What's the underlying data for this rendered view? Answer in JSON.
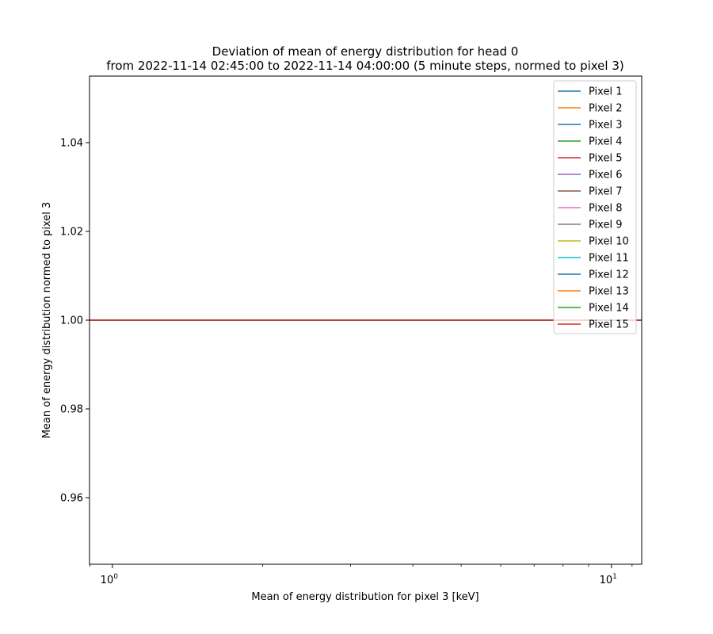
{
  "chart_data": {
    "type": "line",
    "title": "Deviation of mean of energy distribution for head 0",
    "subtitle": "from 2022-11-14 02:45:00 to 2022-11-14 04:00:00 (5 minute steps, normed to pixel 3)",
    "xlabel": "Mean of energy distribution for pixel 3 [keV]",
    "ylabel": "Mean of energy distribution normed to pixel 3",
    "x_scale": "log",
    "xlim": [
      0.9,
      11.5
    ],
    "ylim": [
      0.945,
      1.055
    ],
    "x_ticks": [
      {
        "value": 1,
        "label": "10",
        "exp": "0"
      },
      {
        "value": 10,
        "label": "10",
        "exp": "1"
      }
    ],
    "y_ticks": [
      {
        "value": 0.96,
        "label": "0.96"
      },
      {
        "value": 0.98,
        "label": "0.98"
      },
      {
        "value": 1.0,
        "label": "1.00"
      },
      {
        "value": 1.02,
        "label": "1.02"
      },
      {
        "value": 1.04,
        "label": "1.04"
      }
    ],
    "grid": false,
    "legend_position": "top-right",
    "series": [
      {
        "name": "Pixel 1",
        "color": "#1f77b4",
        "x": [
          0.9,
          11.5
        ],
        "y": [
          1.0,
          1.0
        ]
      },
      {
        "name": "Pixel 2",
        "color": "#ff7f0e",
        "x": [
          0.9,
          11.5
        ],
        "y": [
          1.0,
          1.0
        ]
      },
      {
        "name": "Pixel 3",
        "color": "#1f77b4",
        "x": [
          0.9,
          11.5
        ],
        "y": [
          1.0,
          1.0
        ]
      },
      {
        "name": "Pixel 4",
        "color": "#2ca02c",
        "x": [
          0.9,
          11.5
        ],
        "y": [
          1.0,
          1.0
        ]
      },
      {
        "name": "Pixel 5",
        "color": "#d62728",
        "x": [
          0.9,
          11.5
        ],
        "y": [
          1.0,
          1.0
        ]
      },
      {
        "name": "Pixel 6",
        "color": "#9467bd",
        "x": [
          0.9,
          11.5
        ],
        "y": [
          1.0,
          1.0
        ]
      },
      {
        "name": "Pixel 7",
        "color": "#8c564b",
        "x": [
          0.9,
          11.5
        ],
        "y": [
          1.0,
          1.0
        ]
      },
      {
        "name": "Pixel 8",
        "color": "#e377c2",
        "x": [
          0.9,
          11.5
        ],
        "y": [
          1.0,
          1.0
        ]
      },
      {
        "name": "Pixel 9",
        "color": "#7f7f7f",
        "x": [
          0.9,
          11.5
        ],
        "y": [
          1.0,
          1.0
        ]
      },
      {
        "name": "Pixel 10",
        "color": "#bcbd22",
        "x": [
          0.9,
          11.5
        ],
        "y": [
          1.0,
          1.0
        ]
      },
      {
        "name": "Pixel 11",
        "color": "#17becf",
        "x": [
          0.9,
          11.5
        ],
        "y": [
          1.0,
          1.0
        ]
      },
      {
        "name": "Pixel 12",
        "color": "#1f77b4",
        "x": [
          0.9,
          11.5
        ],
        "y": [
          1.0,
          1.0
        ]
      },
      {
        "name": "Pixel 13",
        "color": "#ff7f0e",
        "x": [
          0.9,
          11.5
        ],
        "y": [
          1.0,
          1.0
        ]
      },
      {
        "name": "Pixel 14",
        "color": "#2ca02c",
        "x": [
          0.9,
          11.5
        ],
        "y": [
          1.0,
          1.0
        ]
      },
      {
        "name": "Pixel 15",
        "color": "#d62728",
        "x": [
          0.9,
          11.5
        ],
        "y": [
          1.0,
          1.0
        ]
      }
    ]
  }
}
